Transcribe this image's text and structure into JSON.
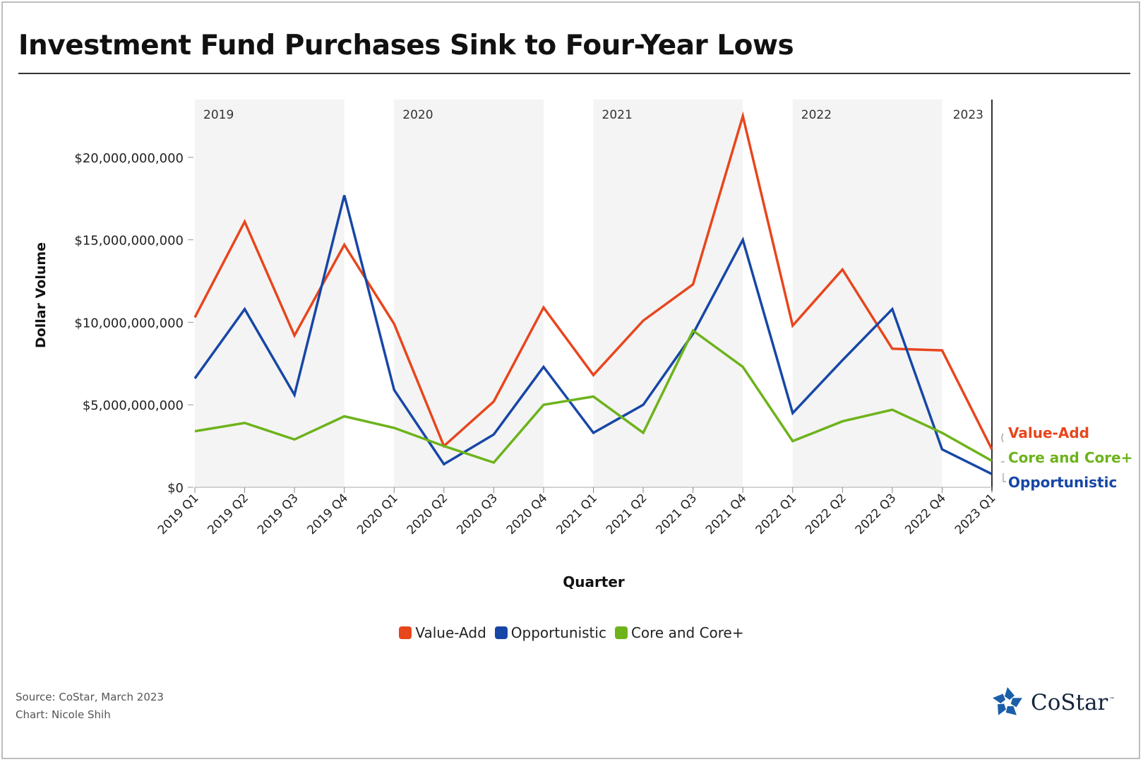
{
  "title": "Investment Fund Purchases Sink to Four-Year Lows",
  "footer": {
    "source": "Source: CoStar, March 2023",
    "credit": "Chart: Nicole Shih"
  },
  "logo": {
    "text": "CoStar",
    "tm": "™",
    "icon": "costar-star-icon",
    "color": "#1b5fa8"
  },
  "chart_data": {
    "type": "line",
    "title": "Investment Fund Purchases Sink to Four-Year Lows",
    "xlabel": "Quarter",
    "ylabel": "Dollar Volume",
    "ylim": [
      0,
      23500000000
    ],
    "yticks": [
      0,
      5000000000,
      10000000000,
      15000000000,
      20000000000
    ],
    "ytick_labels": [
      "$0",
      "$5,000,000,000",
      "$10,000,000,000",
      "$15,000,000,000",
      "$20,000,000,000"
    ],
    "grid": false,
    "legend_position": "bottom",
    "categories": [
      "2019 Q1",
      "2019 Q2",
      "2019 Q3",
      "2019 Q4",
      "2020 Q1",
      "2020 Q2",
      "2020 Q3",
      "2020 Q4",
      "2021 Q1",
      "2021 Q2",
      "2021 Q3",
      "2021 Q4",
      "2022 Q1",
      "2022 Q2",
      "2022 Q3",
      "2022 Q4",
      "2023 Q1"
    ],
    "year_bands": [
      {
        "label": "2019",
        "start": "2019 Q1",
        "end": "2019 Q4",
        "shaded": true
      },
      {
        "label": "2020",
        "start": "2020 Q1",
        "end": "2020 Q4",
        "shaded": true
      },
      {
        "label": "2021",
        "start": "2021 Q1",
        "end": "2021 Q4",
        "shaded": true
      },
      {
        "label": "2022",
        "start": "2022 Q1",
        "end": "2022 Q4",
        "shaded": true
      },
      {
        "label": "2023",
        "start": "2023 Q1",
        "end": "2023 Q1",
        "shaded": false
      }
    ],
    "band_color": "#f4f4f4",
    "series": [
      {
        "name": "Value-Add",
        "color": "#e8461d",
        "values": [
          10300000000,
          16100000000,
          9200000000,
          14700000000,
          9900000000,
          2500000000,
          5200000000,
          10900000000,
          6800000000,
          10100000000,
          12300000000,
          22500000000,
          9800000000,
          13200000000,
          8400000000,
          8300000000,
          2300000000
        ]
      },
      {
        "name": "Opportunistic",
        "color": "#1747a6",
        "values": [
          6600000000,
          10800000000,
          5600000000,
          17700000000,
          5900000000,
          1400000000,
          3200000000,
          7300000000,
          3300000000,
          5000000000,
          9300000000,
          15000000000,
          4500000000,
          7700000000,
          10800000000,
          2300000000,
          800000000
        ]
      },
      {
        "name": "Core and Core+",
        "color": "#6db31b",
        "values": [
          3400000000,
          3900000000,
          2900000000,
          4300000000,
          3600000000,
          2500000000,
          1500000000,
          5000000000,
          5500000000,
          3300000000,
          9500000000,
          7300000000,
          2800000000,
          4000000000,
          4700000000,
          3300000000,
          1600000000
        ]
      }
    ],
    "end_labels": [
      {
        "name": "Value-Add",
        "color": "#e8461d"
      },
      {
        "name": "Core and Core+",
        "color": "#6db31b"
      },
      {
        "name": "Opportunistic",
        "color": "#1747a6"
      }
    ]
  }
}
